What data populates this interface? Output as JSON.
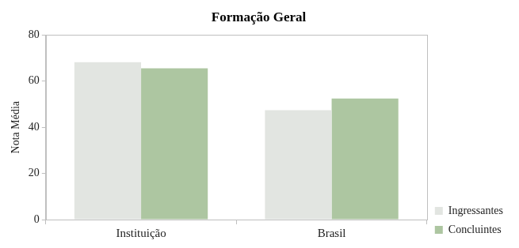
{
  "chart_data": {
    "type": "bar",
    "title": "Formação Geral",
    "y_label": "Nota Média",
    "categories": [
      "Instituição",
      "Brasil"
    ],
    "series": [
      {
        "name": "Ingressantes",
        "color": "#e2e5e1",
        "values": [
          68.2,
          47.4
        ]
      },
      {
        "name": "Concluintes",
        "color": "#adc6a1",
        "values": [
          65.6,
          52.5
        ]
      }
    ],
    "ylim": [
      0,
      80
    ],
    "yticks": [
      0,
      20,
      40,
      60,
      80
    ],
    "grid": false,
    "legend": "right"
  }
}
